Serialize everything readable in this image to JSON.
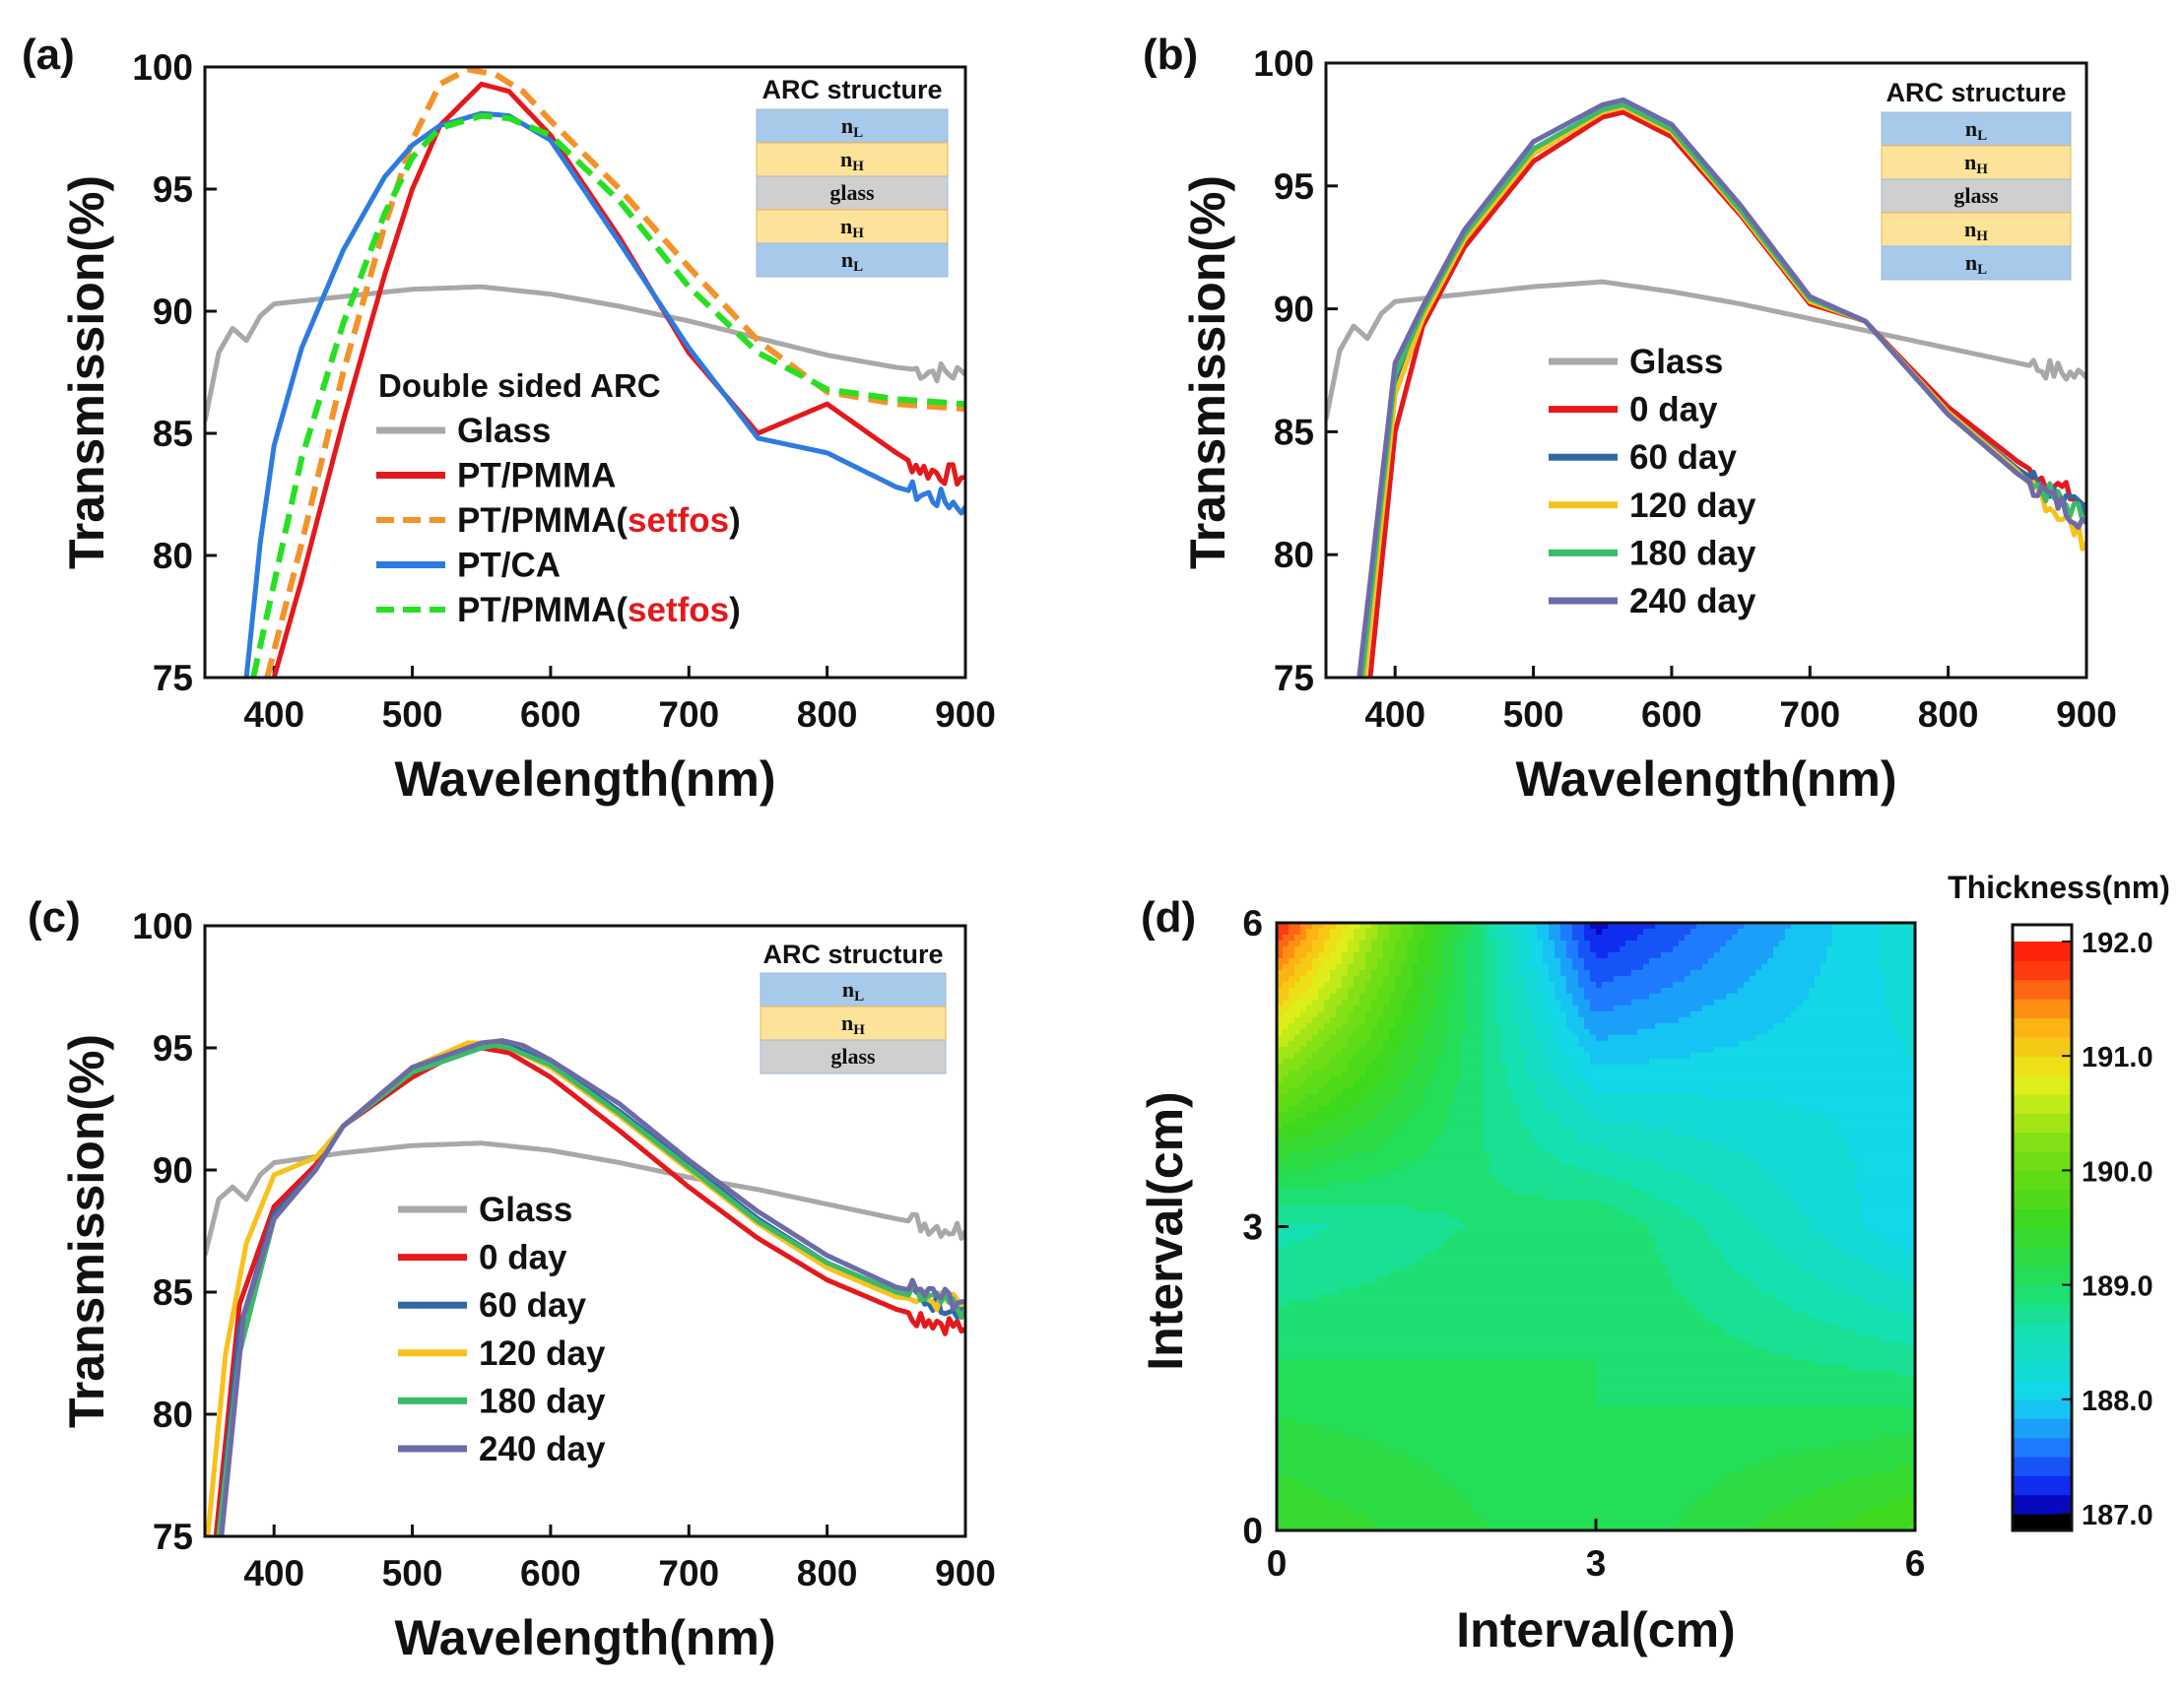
{
  "colors": {
    "glass": "#a8a8a8",
    "red": "#e3191c",
    "orange": "#f4922a",
    "blue": "#2e7be0",
    "green": "#26e021",
    "setfos": "#e3191c",
    "day0": "#e3191c",
    "day60": "#2f68a6",
    "day120": "#f8c11b",
    "day180": "#3cba6a",
    "day240": "#6d6aa8",
    "layer_low": "#a7c9ea",
    "layer_high": "#fde29a",
    "layer_glass": "#cfcfcf"
  },
  "panels": [
    {
      "id": "a",
      "label": "(a)",
      "ylabel": "Transmission(%)",
      "xlabel": "Wavelength(nm)",
      "arc_title": "ARC structure",
      "layers": [
        {
          "kind": "low",
          "label": "n",
          "sub": "L"
        },
        {
          "kind": "high",
          "label": "n",
          "sub": "H"
        },
        {
          "kind": "glass",
          "label": "glass",
          "sub": ""
        },
        {
          "kind": "high",
          "label": "n",
          "sub": "H"
        },
        {
          "kind": "low",
          "label": "n",
          "sub": "L"
        }
      ],
      "legend_title": "Double sided ARC",
      "legend": [
        {
          "text": "Glass",
          "extra": "",
          "color": "glass",
          "dash": false
        },
        {
          "text": "PT/PMMA",
          "extra": "",
          "color": "red",
          "dash": false
        },
        {
          "text": "PT/PMMA(",
          "extra": "setfos",
          "close": ")",
          "color": "orange",
          "dash": true
        },
        {
          "text": "PT/CA",
          "extra": "",
          "color": "blue",
          "dash": false
        },
        {
          "text": "PT/PMMA(",
          "extra": "setfos",
          "close": ")",
          "color": "green",
          "dash": true
        }
      ]
    },
    {
      "id": "b",
      "label": "(b)",
      "ylabel": "Transmission(%)",
      "xlabel": "Wavelength(nm)",
      "arc_title": "ARC structure",
      "layers": [
        {
          "kind": "low",
          "label": "n",
          "sub": "L"
        },
        {
          "kind": "high",
          "label": "n",
          "sub": "H"
        },
        {
          "kind": "glass",
          "label": "glass",
          "sub": ""
        },
        {
          "kind": "high",
          "label": "n",
          "sub": "H"
        },
        {
          "kind": "low",
          "label": "n",
          "sub": "L"
        }
      ],
      "legend_title": "",
      "legend": [
        {
          "text": "Glass",
          "extra": "",
          "color": "glass",
          "dash": false
        },
        {
          "text": "0 day",
          "extra": "",
          "color": "day0",
          "dash": false
        },
        {
          "text": "60 day",
          "extra": "",
          "color": "day60",
          "dash": false
        },
        {
          "text": "120 day",
          "extra": "",
          "color": "day120",
          "dash": false
        },
        {
          "text": "180 day",
          "extra": "",
          "color": "day180",
          "dash": false
        },
        {
          "text": "240 day",
          "extra": "",
          "color": "day240",
          "dash": false
        }
      ]
    },
    {
      "id": "c",
      "label": "(c)",
      "ylabel": "Transmission(%)",
      "xlabel": "Wavelength(nm)",
      "arc_title": "ARC structure",
      "layers": [
        {
          "kind": "low",
          "label": "n",
          "sub": "L"
        },
        {
          "kind": "high",
          "label": "n",
          "sub": "H"
        },
        {
          "kind": "glass",
          "label": "glass",
          "sub": ""
        }
      ],
      "legend_title": "",
      "legend": [
        {
          "text": "Glass",
          "extra": "",
          "color": "glass",
          "dash": false
        },
        {
          "text": "0 day",
          "extra": "",
          "color": "day0",
          "dash": false
        },
        {
          "text": "60 day",
          "extra": "",
          "color": "day60",
          "dash": false
        },
        {
          "text": "120 day",
          "extra": "",
          "color": "day120",
          "dash": false
        },
        {
          "text": "180 day",
          "extra": "",
          "color": "day180",
          "dash": false
        },
        {
          "text": "240 day",
          "extra": "",
          "color": "day240",
          "dash": false
        }
      ]
    },
    {
      "id": "d",
      "label": "(d)",
      "ylabel": "Interval(cm)",
      "xlabel": "Interval(cm)",
      "colorbar_title": "Thickness(nm)"
    }
  ],
  "chart_data": [
    {
      "type": "line",
      "panel": "a",
      "xlim": [
        350,
        900
      ],
      "ylim": [
        75,
        100
      ],
      "xticks": [
        400,
        500,
        600,
        700,
        800,
        900
      ],
      "yticks": [
        75,
        80,
        85,
        90,
        95,
        100
      ],
      "series": [
        {
          "name": "Glass",
          "color": "glass",
          "dash": false,
          "x": [
            350,
            360,
            370,
            380,
            390,
            400,
            450,
            500,
            550,
            600,
            650,
            700,
            750,
            800,
            850,
            900
          ],
          "y": [
            85.5,
            88.3,
            89.3,
            88.8,
            89.8,
            90.3,
            90.6,
            90.9,
            91.0,
            90.7,
            90.2,
            89.6,
            88.9,
            88.2,
            87.7,
            87.4
          ]
        },
        {
          "name": "PT/PMMA",
          "color": "red",
          "dash": false,
          "x": [
            400,
            420,
            450,
            480,
            500,
            520,
            550,
            570,
            600,
            650,
            700,
            750,
            800,
            850,
            870,
            900
          ],
          "y": [
            75,
            79,
            85.5,
            91.5,
            95,
            97.6,
            99.3,
            99.0,
            97.2,
            93.0,
            88.3,
            85.0,
            86.2,
            84.2,
            83.5,
            83.2
          ]
        },
        {
          "name": "PT/PMMA(setfos)",
          "color": "orange",
          "dash": true,
          "x": [
            395,
            420,
            450,
            480,
            500,
            520,
            540,
            560,
            580,
            600,
            650,
            700,
            750,
            800,
            850,
            900
          ],
          "y": [
            75,
            80.5,
            87.5,
            93.5,
            97,
            99.3,
            99.9,
            99.7,
            99.0,
            97.8,
            95.0,
            91.8,
            88.8,
            86.7,
            86.2,
            86.0
          ]
        },
        {
          "name": "PT/CA",
          "color": "blue",
          "dash": false,
          "x": [
            380,
            390,
            400,
            420,
            450,
            480,
            500,
            520,
            550,
            570,
            600,
            650,
            700,
            750,
            800,
            850,
            900
          ],
          "y": [
            75,
            80.5,
            84.5,
            88.5,
            92.5,
            95.5,
            96.8,
            97.6,
            98.1,
            98.0,
            97.0,
            92.8,
            88.5,
            84.8,
            84.2,
            82.8,
            82.0
          ]
        },
        {
          "name": "PT/PMMA(setfos)",
          "color": "green",
          "dash": true,
          "x": [
            385,
            420,
            450,
            480,
            500,
            520,
            550,
            570,
            600,
            650,
            700,
            750,
            800,
            850,
            900
          ],
          "y": [
            75,
            84,
            89.5,
            94,
            96.3,
            97.5,
            98.0,
            97.9,
            97.2,
            94.5,
            91.0,
            88.3,
            86.8,
            86.4,
            86.2
          ]
        }
      ]
    },
    {
      "type": "line",
      "panel": "b",
      "xlim": [
        350,
        900
      ],
      "ylim": [
        75,
        100
      ],
      "xticks": [
        400,
        500,
        600,
        700,
        800,
        900
      ],
      "yticks": [
        75,
        80,
        85,
        90,
        95,
        100
      ],
      "series": [
        {
          "name": "Glass",
          "color": "glass",
          "dash": false,
          "x": [
            350,
            360,
            370,
            380,
            390,
            400,
            450,
            500,
            550,
            600,
            650,
            700,
            750,
            800,
            850,
            900
          ],
          "y": [
            85.5,
            88.3,
            89.3,
            88.8,
            89.8,
            90.3,
            90.6,
            90.9,
            91.1,
            90.7,
            90.2,
            89.6,
            89.0,
            88.4,
            87.8,
            87.2
          ]
        },
        {
          "name": "0 day",
          "color": "day0",
          "dash": false,
          "x": [
            382,
            400,
            420,
            450,
            500,
            550,
            565,
            600,
            650,
            700,
            740,
            800,
            850,
            900
          ],
          "y": [
            75,
            85,
            89.3,
            92.5,
            96.0,
            97.8,
            98.0,
            97.0,
            93.8,
            90.2,
            89.5,
            86.0,
            83.8,
            82.0
          ]
        },
        {
          "name": "60 day",
          "color": "day60",
          "dash": false,
          "x": [
            377,
            400,
            420,
            450,
            500,
            550,
            565,
            600,
            650,
            700,
            740,
            800,
            850,
            900
          ],
          "y": [
            75,
            87,
            89.8,
            93.0,
            96.5,
            98.1,
            98.3,
            97.3,
            94.0,
            90.4,
            89.5,
            85.8,
            83.5,
            81.6
          ]
        },
        {
          "name": "120 day",
          "color": "day120",
          "dash": false,
          "x": [
            378,
            400,
            420,
            450,
            500,
            550,
            565,
            600,
            650,
            700,
            740,
            800,
            850,
            900
          ],
          "y": [
            75,
            86.5,
            89.6,
            92.8,
            96.3,
            98.0,
            98.2,
            97.2,
            93.9,
            90.3,
            89.5,
            85.8,
            83.4,
            80.5
          ]
        },
        {
          "name": "180 day",
          "color": "day180",
          "dash": false,
          "x": [
            376,
            400,
            420,
            450,
            500,
            550,
            565,
            600,
            650,
            700,
            740,
            800,
            850,
            900
          ],
          "y": [
            75,
            87.3,
            89.9,
            93.0,
            96.5,
            98.1,
            98.3,
            97.3,
            94.0,
            90.4,
            89.5,
            85.7,
            83.3,
            81.5
          ]
        },
        {
          "name": "240 day",
          "color": "day240",
          "dash": false,
          "x": [
            374,
            400,
            420,
            450,
            500,
            550,
            565,
            600,
            650,
            700,
            740,
            800,
            850,
            900
          ],
          "y": [
            75,
            87.8,
            90.1,
            93.2,
            96.8,
            98.3,
            98.5,
            97.5,
            94.2,
            90.5,
            89.5,
            85.7,
            83.3,
            81.3
          ]
        }
      ]
    },
    {
      "type": "line",
      "panel": "c",
      "xlim": [
        350,
        900
      ],
      "ylim": [
        75,
        100
      ],
      "xticks": [
        400,
        500,
        600,
        700,
        800,
        900
      ],
      "yticks": [
        75,
        80,
        85,
        90,
        95,
        100
      ],
      "series": [
        {
          "name": "Glass",
          "color": "glass",
          "dash": false,
          "x": [
            350,
            360,
            370,
            380,
            390,
            400,
            450,
            500,
            550,
            600,
            650,
            700,
            750,
            800,
            850,
            900
          ],
          "y": [
            86.5,
            88.8,
            89.3,
            88.8,
            89.8,
            90.3,
            90.7,
            91.0,
            91.1,
            90.8,
            90.3,
            89.7,
            89.2,
            88.6,
            88.0,
            87.5
          ]
        },
        {
          "name": "0 day",
          "color": "day0",
          "dash": false,
          "x": [
            358,
            375,
            400,
            430,
            450,
            500,
            540,
            550,
            570,
            600,
            650,
            700,
            750,
            800,
            850,
            900
          ],
          "y": [
            75,
            84.5,
            88.5,
            90.2,
            91.8,
            93.8,
            95.0,
            95.0,
            94.8,
            93.8,
            91.6,
            89.3,
            87.2,
            85.5,
            84.3,
            83.5
          ]
        },
        {
          "name": "60 day",
          "color": "day60",
          "dash": false,
          "x": [
            360,
            375,
            400,
            430,
            450,
            500,
            550,
            560,
            570,
            600,
            650,
            700,
            750,
            800,
            850,
            900
          ],
          "y": [
            75,
            83.5,
            88.2,
            90.0,
            91.8,
            94.0,
            95.1,
            95.2,
            95.1,
            94.4,
            92.4,
            90.2,
            88.0,
            86.2,
            85.0,
            84.3
          ]
        },
        {
          "name": "120 day",
          "color": "day120",
          "dash": false,
          "x": [
            352,
            365,
            380,
            400,
            430,
            450,
            500,
            540,
            550,
            570,
            600,
            650,
            700,
            750,
            800,
            850,
            900
          ],
          "y": [
            75,
            82.5,
            87.0,
            89.8,
            90.5,
            91.8,
            94.2,
            95.2,
            95.2,
            95.0,
            94.2,
            92.2,
            90.0,
            87.8,
            86.0,
            84.8,
            84.5
          ]
        },
        {
          "name": "180 day",
          "color": "day180",
          "dash": false,
          "x": [
            360,
            375,
            400,
            430,
            450,
            500,
            550,
            560,
            570,
            600,
            650,
            700,
            750,
            800,
            850,
            900
          ],
          "y": [
            75,
            82.5,
            88.0,
            90.0,
            91.8,
            94.0,
            95.0,
            95.1,
            95.0,
            94.3,
            92.3,
            90.1,
            87.9,
            86.2,
            85.0,
            84.3
          ]
        },
        {
          "name": "240 day",
          "color": "day240",
          "dash": false,
          "x": [
            362,
            378,
            400,
            430,
            450,
            500,
            550,
            565,
            580,
            600,
            650,
            700,
            750,
            800,
            850,
            900
          ],
          "y": [
            75,
            84.0,
            88.0,
            90.0,
            91.8,
            94.2,
            95.2,
            95.3,
            95.1,
            94.5,
            92.7,
            90.4,
            88.3,
            86.5,
            85.2,
            84.6
          ]
        }
      ]
    },
    {
      "type": "heatmap",
      "panel": "d",
      "xlim": [
        0,
        6
      ],
      "ylim": [
        0,
        6
      ],
      "xticks": [
        0,
        3,
        6
      ],
      "yticks": [
        0,
        3,
        6
      ],
      "x": [
        0,
        3,
        6
      ],
      "y": [
        0,
        3,
        6
      ],
      "z": [
        [
          189.5,
          189.0,
          189.7
        ],
        [
          188.6,
          189.0,
          188.0
        ],
        [
          191.9,
          187.1,
          188.3
        ]
      ],
      "colorbar": {
        "min": 187.0,
        "max": 192.0,
        "ticks": [
          187.0,
          188.0,
          189.0,
          190.0,
          191.0,
          192.0
        ],
        "levels": 30,
        "stops": [
          [
            187.0,
            "#000000"
          ],
          [
            187.1,
            "#0a0ae8"
          ],
          [
            187.6,
            "#1f7fff"
          ],
          [
            188.0,
            "#14d6f0"
          ],
          [
            188.6,
            "#15e0b0"
          ],
          [
            189.0,
            "#20df60"
          ],
          [
            189.6,
            "#3fd81c"
          ],
          [
            190.2,
            "#7ae015"
          ],
          [
            190.8,
            "#e8ef1a"
          ],
          [
            191.3,
            "#ffac12"
          ],
          [
            191.8,
            "#ff3010"
          ],
          [
            192.0,
            "#ff1a0a"
          ],
          [
            192.1,
            "#ffffff"
          ]
        ]
      }
    }
  ]
}
